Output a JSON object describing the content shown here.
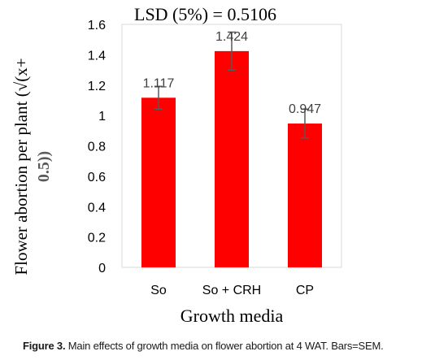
{
  "chart_data": {
    "type": "bar",
    "annotation": "LSD (5%) = 0.5106",
    "categories": [
      "So",
      "So + CRH",
      "CP"
    ],
    "values": [
      1.117,
      1.424,
      0.947
    ],
    "data_labels": [
      "1.117",
      "1.424",
      "0.947"
    ],
    "error_bars": [
      0.075,
      0.125,
      0.095
    ],
    "ylim": [
      0,
      1.6
    ],
    "yticks": [
      "0",
      "0.2",
      "0.4",
      "0.6",
      "0.8",
      "1",
      "1.2",
      "1.4",
      "1.6"
    ],
    "ylabel_line1": "Flower abortion per plant (√(x+",
    "ylabel_line2": "0.5))",
    "xlabel": "Growth media",
    "grid": false,
    "bar_color": "#ff0000",
    "error_color": "#595959"
  },
  "caption": {
    "label": "Figure 3.",
    "text": " Main effects of growth media on flower abortion at 4 WAT. Bars=SEM."
  }
}
